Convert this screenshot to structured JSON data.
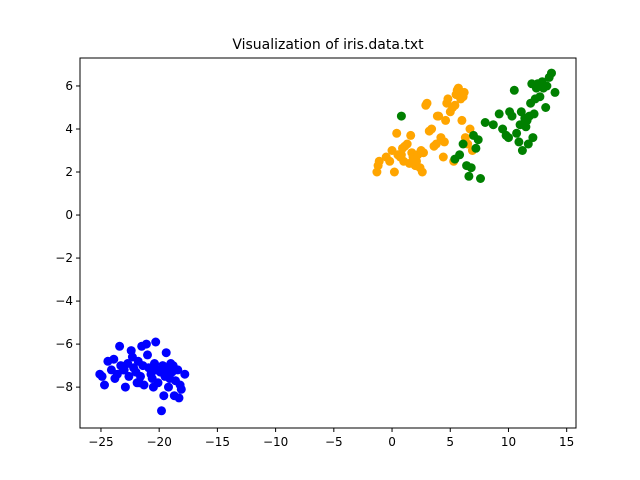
{
  "chart_data": {
    "type": "scatter",
    "title": "Visualization of iris.data.txt",
    "xlabel": "",
    "ylabel": "",
    "xlim": [
      -26.8,
      15.8
    ],
    "ylim": [
      -9.9,
      7.3
    ],
    "xticks": [
      -25,
      -20,
      -15,
      -10,
      -5,
      0,
      5,
      10,
      15
    ],
    "yticks": [
      -8,
      -6,
      -4,
      -2,
      0,
      2,
      4,
      6
    ],
    "grid": false,
    "legend": false,
    "series": [
      {
        "color": "#0000ff",
        "points": [
          [
            -25.1,
            -7.4
          ],
          [
            -24.7,
            -7.9
          ],
          [
            -24.4,
            -6.8
          ],
          [
            -24.1,
            -7.2
          ],
          [
            -23.9,
            -6.7
          ],
          [
            -23.8,
            -7.6
          ],
          [
            -23.6,
            -7.4
          ],
          [
            -23.4,
            -6.1
          ],
          [
            -23.3,
            -7.0
          ],
          [
            -23.1,
            -7.2
          ],
          [
            -22.9,
            -8.0
          ],
          [
            -22.7,
            -6.9
          ],
          [
            -22.6,
            -7.5
          ],
          [
            -22.4,
            -6.3
          ],
          [
            -22.3,
            -6.6
          ],
          [
            -22.2,
            -7.1
          ],
          [
            -22.0,
            -7.3
          ],
          [
            -21.9,
            -7.8
          ],
          [
            -21.8,
            -6.8
          ],
          [
            -21.6,
            -7.5
          ],
          [
            -21.5,
            -6.1
          ],
          [
            -21.4,
            -7.0
          ],
          [
            -21.3,
            -7.9
          ],
          [
            -21.1,
            -6.0
          ],
          [
            -21.0,
            -6.5
          ],
          [
            -20.9,
            -7.1
          ],
          [
            -20.7,
            -7.4
          ],
          [
            -20.6,
            -7.6
          ],
          [
            -20.4,
            -6.9
          ],
          [
            -20.3,
            -5.9
          ],
          [
            -20.2,
            -7.2
          ],
          [
            -20.1,
            -7.8
          ],
          [
            -19.9,
            -7.3
          ],
          [
            -19.8,
            -9.1
          ],
          [
            -19.7,
            -7.0
          ],
          [
            -19.6,
            -8.4
          ],
          [
            -19.5,
            -7.5
          ],
          [
            -19.4,
            -6.4
          ],
          [
            -19.3,
            -7.2
          ],
          [
            -19.2,
            -8.0
          ],
          [
            -19.1,
            -7.6
          ],
          [
            -19.0,
            -6.9
          ],
          [
            -18.9,
            -7.3
          ],
          [
            -18.8,
            -7.0
          ],
          [
            -18.7,
            -8.4
          ],
          [
            -18.6,
            -7.7
          ],
          [
            -18.4,
            -7.2
          ],
          [
            -18.3,
            -8.5
          ],
          [
            -18.2,
            -7.9
          ],
          [
            -18.1,
            -8.1
          ],
          [
            -17.8,
            -7.4
          ],
          [
            -24.9,
            -7.5
          ],
          [
            -23.0,
            -7.2
          ],
          [
            -21.7,
            -7.8
          ],
          [
            -20.5,
            -8.0
          ]
        ]
      },
      {
        "color": "#ffa500",
        "points": [
          [
            -1.3,
            2.0
          ],
          [
            -1.2,
            2.3
          ],
          [
            -1.1,
            2.5
          ],
          [
            -0.5,
            2.7
          ],
          [
            -0.2,
            2.5
          ],
          [
            0.0,
            3.0
          ],
          [
            0.2,
            2.0
          ],
          [
            0.4,
            3.8
          ],
          [
            0.5,
            2.8
          ],
          [
            0.7,
            2.7
          ],
          [
            0.9,
            3.1
          ],
          [
            1.0,
            2.5
          ],
          [
            1.1,
            3.2
          ],
          [
            1.3,
            3.3
          ],
          [
            1.5,
            2.4
          ],
          [
            1.7,
            2.9
          ],
          [
            1.8,
            2.7
          ],
          [
            2.0,
            2.3
          ],
          [
            2.1,
            2.5
          ],
          [
            2.2,
            2.8
          ],
          [
            2.4,
            2.2
          ],
          [
            2.6,
            2.0
          ],
          [
            2.7,
            2.9
          ],
          [
            2.9,
            5.1
          ],
          [
            3.0,
            5.2
          ],
          [
            3.2,
            3.9
          ],
          [
            3.4,
            4.0
          ],
          [
            3.6,
            3.2
          ],
          [
            3.8,
            3.3
          ],
          [
            4.0,
            4.6
          ],
          [
            4.2,
            3.6
          ],
          [
            4.4,
            2.7
          ],
          [
            4.5,
            3.4
          ],
          [
            4.6,
            4.4
          ],
          [
            4.7,
            5.2
          ],
          [
            4.8,
            5.4
          ],
          [
            5.0,
            4.8
          ],
          [
            5.2,
            5.0
          ],
          [
            5.4,
            5.1
          ],
          [
            5.5,
            5.6
          ],
          [
            5.6,
            5.8
          ],
          [
            5.7,
            5.9
          ],
          [
            5.9,
            5.4
          ],
          [
            6.0,
            4.4
          ],
          [
            6.1,
            5.5
          ],
          [
            6.2,
            5.7
          ],
          [
            6.3,
            3.6
          ],
          [
            6.5,
            3.3
          ],
          [
            6.7,
            4.0
          ],
          [
            6.9,
            3.0
          ],
          [
            1.6,
            3.7
          ],
          [
            3.9,
            4.6
          ],
          [
            5.3,
            2.5
          ],
          [
            0.8,
            2.8
          ],
          [
            2.5,
            3.0
          ]
        ]
      },
      {
        "color": "#008000",
        "points": [
          [
            0.8,
            4.6
          ],
          [
            5.4,
            2.6
          ],
          [
            5.8,
            2.8
          ],
          [
            6.1,
            3.3
          ],
          [
            6.4,
            2.3
          ],
          [
            6.6,
            1.8
          ],
          [
            6.8,
            2.2
          ],
          [
            7.0,
            3.7
          ],
          [
            7.2,
            3.1
          ],
          [
            7.4,
            3.5
          ],
          [
            7.6,
            1.7
          ],
          [
            8.0,
            4.3
          ],
          [
            8.7,
            4.2
          ],
          [
            9.2,
            4.7
          ],
          [
            9.5,
            4.0
          ],
          [
            9.8,
            3.7
          ],
          [
            10.0,
            3.6
          ],
          [
            10.3,
            4.6
          ],
          [
            10.5,
            5.8
          ],
          [
            10.7,
            3.8
          ],
          [
            10.9,
            3.4
          ],
          [
            11.0,
            4.2
          ],
          [
            11.1,
            4.8
          ],
          [
            11.2,
            3.0
          ],
          [
            11.4,
            4.5
          ],
          [
            11.5,
            4.1
          ],
          [
            11.7,
            3.3
          ],
          [
            11.8,
            4.6
          ],
          [
            11.9,
            5.2
          ],
          [
            12.0,
            6.1
          ],
          [
            12.1,
            3.6
          ],
          [
            12.2,
            4.7
          ],
          [
            12.4,
            5.9
          ],
          [
            12.5,
            6.1
          ],
          [
            12.7,
            5.5
          ],
          [
            12.9,
            6.2
          ],
          [
            13.0,
            5.9
          ],
          [
            13.2,
            5.0
          ],
          [
            13.3,
            6.0
          ],
          [
            13.5,
            6.4
          ],
          [
            13.7,
            6.6
          ],
          [
            14.0,
            5.7
          ],
          [
            10.1,
            4.8
          ],
          [
            11.6,
            4.4
          ],
          [
            12.3,
            5.4
          ]
        ]
      }
    ]
  }
}
